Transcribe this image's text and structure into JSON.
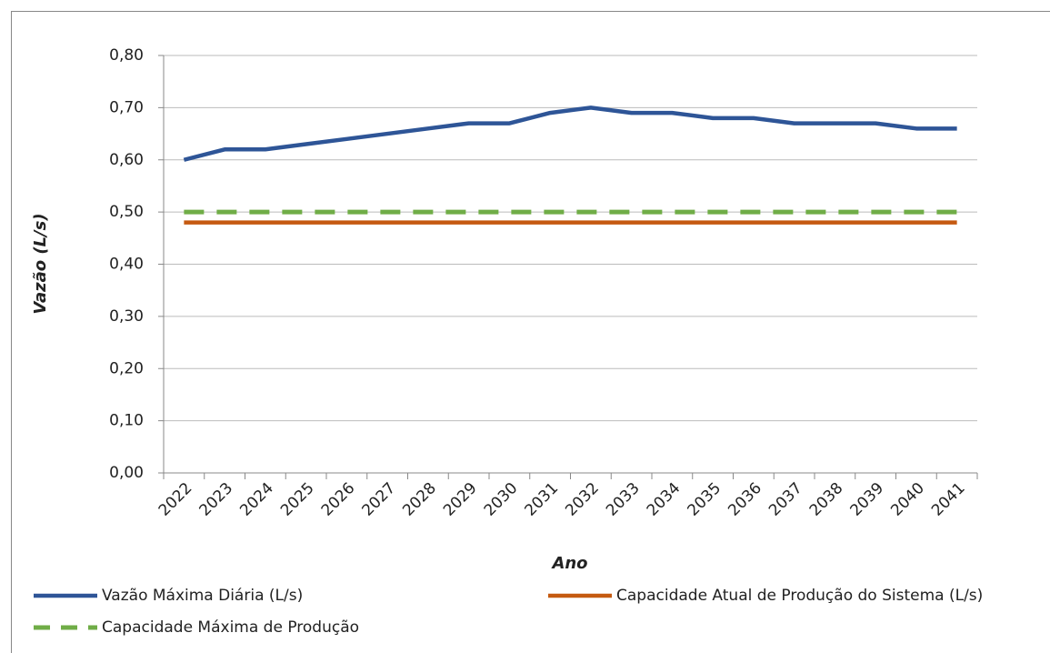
{
  "chart_data": {
    "type": "line",
    "x_label": "Ano",
    "y_label": "Vazão (L/s)",
    "categories": [
      "2022",
      "2023",
      "2024",
      "2025",
      "2026",
      "2027",
      "2028",
      "2029",
      "2030",
      "2031",
      "2032",
      "2033",
      "2034",
      "2035",
      "2036",
      "2037",
      "2038",
      "2039",
      "2040",
      "2041"
    ],
    "series": [
      {
        "name": "Vazão Máxima Diária (L/s)",
        "color": "#2e5597",
        "dash": false,
        "values": [
          0.6,
          0.62,
          0.62,
          0.63,
          0.64,
          0.65,
          0.66,
          0.67,
          0.67,
          0.69,
          0.7,
          0.69,
          0.69,
          0.68,
          0.68,
          0.67,
          0.67,
          0.67,
          0.66,
          0.66
        ]
      },
      {
        "name": "Capacidade Atual de Produção do Sistema (L/s)",
        "color": "#c55a11",
        "dash": false,
        "values": [
          0.48,
          0.48,
          0.48,
          0.48,
          0.48,
          0.48,
          0.48,
          0.48,
          0.48,
          0.48,
          0.48,
          0.48,
          0.48,
          0.48,
          0.48,
          0.48,
          0.48,
          0.48,
          0.48,
          0.48
        ]
      },
      {
        "name": "Capacidade Máxima de Produção",
        "color": "#70ad47",
        "dash": true,
        "values": [
          0.5,
          0.5,
          0.5,
          0.5,
          0.5,
          0.5,
          0.5,
          0.5,
          0.5,
          0.5,
          0.5,
          0.5,
          0.5,
          0.5,
          0.5,
          0.5,
          0.5,
          0.5,
          0.5,
          0.5
        ]
      }
    ],
    "ylim": [
      0,
      0.8
    ],
    "yticks": [
      {
        "value": 0,
        "label": "0,00"
      },
      {
        "value": 0.1,
        "label": "0,10"
      },
      {
        "value": 0.2,
        "label": "0,20"
      },
      {
        "value": 0.3,
        "label": "0,30"
      },
      {
        "value": 0.4,
        "label": "0,40"
      },
      {
        "value": 0.5,
        "label": "0,50"
      },
      {
        "value": 0.6,
        "label": "0,60"
      },
      {
        "value": 0.7,
        "label": "0,70"
      },
      {
        "value": 0.8,
        "label": "0,80"
      }
    ],
    "grid": true,
    "legend": "bottom"
  }
}
